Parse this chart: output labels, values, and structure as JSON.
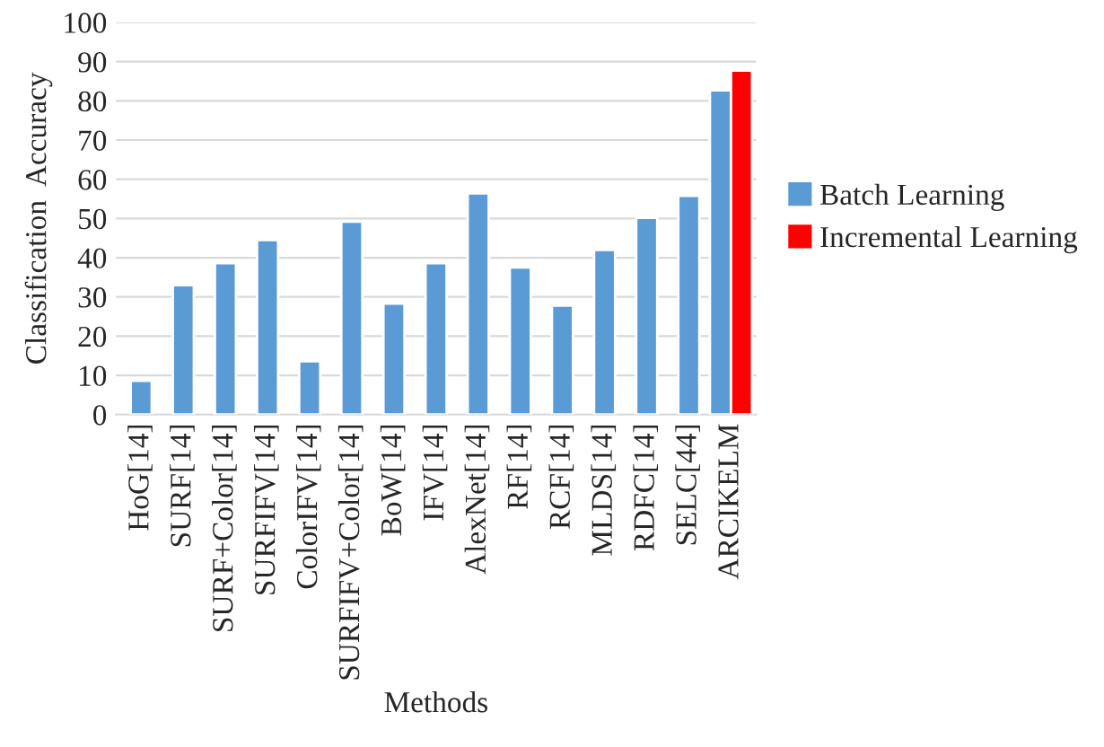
{
  "chart_data": {
    "type": "bar",
    "xlabel": "Methods",
    "ylabel": "Classification  Accuracy",
    "categories": [
      "HoG[14]",
      "SURF[14]",
      "SURF+Color[14]",
      "SURFIFV[14]",
      "ColorIFV[14]",
      "SURFIFV+Color[14]",
      "BoW[14]",
      "IFV[14]",
      "AlexNet[14]",
      "RF[14]",
      "RCF[14]",
      "MLDS[14]",
      "RDFC[14]",
      "SELC[44]",
      "ARCIKELM"
    ],
    "series": [
      {
        "name": "Batch Learning",
        "color": "#5b9bd5",
        "values": [
          8.6,
          33,
          38.6,
          44.5,
          13.6,
          49.2,
          28.3,
          38.6,
          56.4,
          37.5,
          27.8,
          42,
          50.2,
          55.8,
          82.7
        ]
      },
      {
        "name": "Incremental Learning",
        "color": "#ff0000",
        "values": [
          null,
          null,
          null,
          null,
          null,
          null,
          null,
          null,
          null,
          null,
          null,
          null,
          null,
          null,
          87.7
        ]
      }
    ],
    "ylim": [
      0,
      100
    ],
    "yticks": [
      0,
      10,
      20,
      30,
      40,
      50,
      60,
      70,
      80,
      90,
      100
    ],
    "grid": "y",
    "legend": "right"
  }
}
